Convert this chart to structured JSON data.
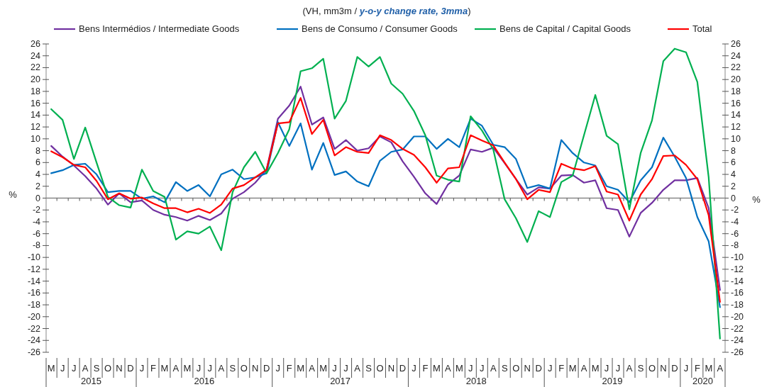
{
  "chart_data": {
    "type": "line",
    "subtitle": "(VH, mm3m / y-o-y change rate, 3mma)",
    "ylabel": "%",
    "y2label": "%",
    "legend": "top",
    "categories": [
      "M",
      "J",
      "J",
      "A",
      "S",
      "O",
      "N",
      "D",
      "J",
      "F",
      "M",
      "A",
      "M",
      "J",
      "J",
      "A",
      "S",
      "O",
      "N",
      "D",
      "J",
      "F",
      "M",
      "A",
      "M",
      "J",
      "J",
      "A",
      "S",
      "O",
      "N",
      "D",
      "J",
      "F",
      "M",
      "A",
      "M",
      "J",
      "J",
      "A",
      "S",
      "O",
      "N",
      "D",
      "J",
      "F",
      "M",
      "A",
      "M",
      "J",
      "J",
      "A",
      "S",
      "O",
      "N",
      "D",
      "J",
      "F",
      "M",
      "A"
    ],
    "annotations": [
      "2015",
      "2016",
      "2017",
      "2018",
      "2019",
      "2020"
    ],
    "ylim": [
      -26,
      26
    ],
    "yticks": [
      -26,
      -24,
      -22,
      -20,
      -18,
      -16,
      -14,
      -12,
      -10,
      -8,
      -6,
      -4,
      -2,
      0,
      2,
      4,
      6,
      8,
      10,
      12,
      14,
      16,
      18,
      20,
      22,
      24,
      26
    ],
    "y2lim": [
      -26,
      26
    ],
    "y2ticks": [
      -26,
      -24,
      -22,
      -20,
      -18,
      -16,
      -14,
      -12,
      -10,
      -8,
      -6,
      -4,
      -2,
      0,
      2,
      4,
      6,
      8,
      10,
      12,
      14,
      16,
      18,
      20,
      22,
      24,
      26
    ],
    "series": [
      {
        "name": "Bens Intermédios / Intermediate Goods",
        "color": "#7030a0",
        "values": [
          8.8,
          7.0,
          5.5,
          3.7,
          1.6,
          -1.1,
          0.8,
          -0.7,
          -0.4,
          -2.0,
          -2.8,
          -3.2,
          -3.8,
          -3.0,
          -3.7,
          -2.6,
          -0.1,
          1.0,
          2.6,
          4.8,
          13.4,
          15.6,
          18.8,
          12.4,
          13.6,
          8.3,
          9.8,
          8.0,
          8.4,
          10.4,
          9.4,
          6.2,
          3.6,
          0.8,
          -1.0,
          2.3,
          3.8,
          8.2,
          7.8,
          8.5,
          5.9,
          3.2,
          0.6,
          1.8,
          1.6,
          3.8,
          3.9,
          2.6,
          3.0,
          -1.7,
          -2.0,
          -6.5,
          -2.5,
          -0.8,
          1.4,
          3.0,
          3.0,
          3.4,
          -1.7,
          -15.5
        ]
      },
      {
        "name": "Bens de Consumo / Consumer Goods",
        "color": "#0070c0",
        "values": [
          4.2,
          4.7,
          5.6,
          5.8,
          4.0,
          1.0,
          1.2,
          1.2,
          -0.1,
          0.3,
          -0.7,
          2.7,
          1.2,
          2.2,
          0.3,
          4.0,
          4.8,
          3.2,
          3.5,
          4.2,
          12.8,
          8.8,
          12.6,
          4.8,
          9.3,
          3.9,
          4.5,
          2.8,
          2.0,
          6.3,
          7.8,
          8.2,
          10.4,
          10.4,
          8.3,
          10.0,
          8.6,
          13.4,
          12.2,
          9.0,
          8.6,
          6.6,
          1.7,
          2.2,
          1.6,
          9.8,
          7.6,
          6.0,
          5.5,
          2.0,
          1.4,
          -0.7,
          3.0,
          5.2,
          10.2,
          7.0,
          3.4,
          -3.2,
          -7.3,
          -18.4
        ]
      },
      {
        "name": "Bens de Capital / Capital Goods",
        "color": "#00b050",
        "values": [
          15.0,
          13.2,
          6.6,
          11.9,
          6.0,
          0.2,
          -1.2,
          -1.6,
          4.8,
          1.2,
          0.2,
          -7.0,
          -5.6,
          -6.0,
          -4.8,
          -8.8,
          1.0,
          5.2,
          7.8,
          4.2,
          7.6,
          11.6,
          21.4,
          21.9,
          23.5,
          13.4,
          16.4,
          23.8,
          22.2,
          23.8,
          19.3,
          17.6,
          14.7,
          10.6,
          3.8,
          3.1,
          2.8,
          13.8,
          11.4,
          8.2,
          -0.2,
          -3.4,
          -7.4,
          -2.2,
          -3.2,
          2.7,
          3.8,
          10.6,
          17.4,
          10.5,
          9.1,
          -1.9,
          7.6,
          13.1,
          23.1,
          25.2,
          24.6,
          19.6,
          3.5,
          -23.7
        ]
      },
      {
        "name": "Total",
        "color": "#ff0000",
        "values": [
          7.9,
          6.9,
          5.6,
          5.2,
          2.9,
          -0.2,
          0.8,
          -0.1,
          0.1,
          -0.9,
          -1.7,
          -1.7,
          -2.4,
          -1.8,
          -2.5,
          -1.1,
          1.6,
          2.2,
          3.5,
          4.8,
          12.6,
          12.8,
          16.9,
          10.8,
          13.2,
          7.2,
          8.6,
          7.8,
          7.6,
          10.6,
          9.8,
          8.3,
          7.3,
          5.2,
          2.6,
          5.0,
          5.2,
          10.6,
          9.7,
          8.9,
          6.0,
          3.2,
          -0.2,
          1.4,
          1.0,
          5.8,
          5.0,
          4.7,
          5.4,
          1.1,
          0.6,
          -3.8,
          0.6,
          3.2,
          7.1,
          7.2,
          5.6,
          3.2,
          -2.9,
          -17.5
        ]
      }
    ]
  }
}
